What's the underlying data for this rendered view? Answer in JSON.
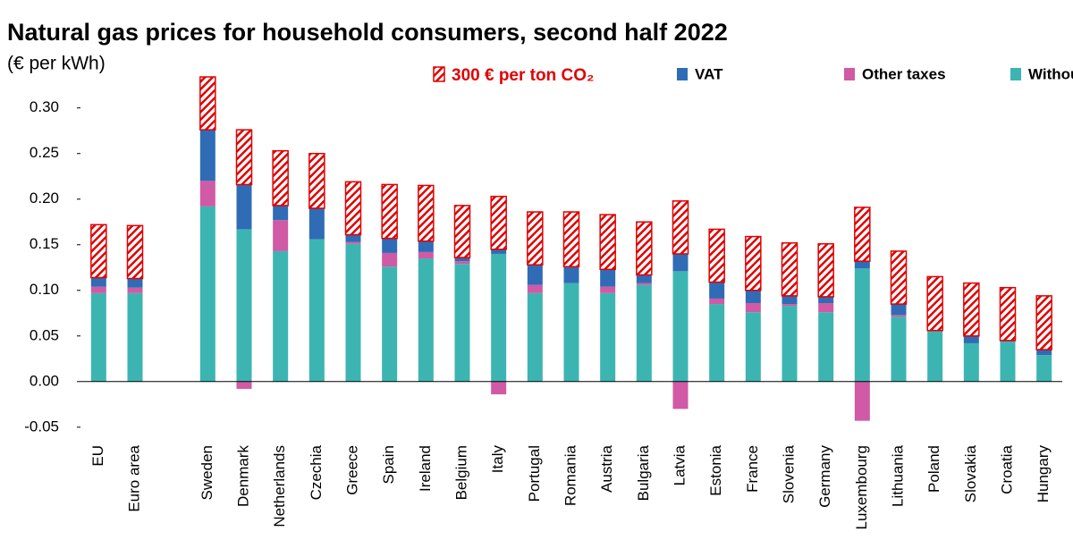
{
  "chart_data": {
    "type": "bar",
    "stacked": true,
    "title": "Natural gas prices for household  consumers, second half 2022",
    "subtitle": "(€ per kWh)",
    "categories": [
      "EU",
      "Euro area",
      null,
      "Sweden",
      "Denmark",
      "Netherlands",
      "Czechia",
      "Greece",
      "Spain",
      "Ireland",
      "Belgium",
      "Italy",
      "Portugal",
      "Romania",
      "Austria",
      "Bulgaria",
      "Latvia",
      "Estonia",
      "France",
      "Slovenia",
      "Germany",
      "Luxembourg",
      "Lithuania",
      "Poland",
      "Slovakia",
      "Croatia",
      "Hungary"
    ],
    "series": [
      {
        "name": "Without taxes",
        "color": "#3cb5b2",
        "values": [
          0.097,
          0.097,
          null,
          0.192,
          0.167,
          0.143,
          0.156,
          0.151,
          0.126,
          0.135,
          0.129,
          0.14,
          0.097,
          0.108,
          0.097,
          0.106,
          0.121,
          0.085,
          0.076,
          0.083,
          0.076,
          0.124,
          0.071,
          0.055,
          0.042,
          0.044,
          0.029
        ]
      },
      {
        "name": "Other taxes",
        "color": "#d05aa6",
        "values": [
          0.007,
          0.006,
          null,
          0.028,
          -0.008,
          0.034,
          0,
          0.002,
          0.015,
          0.007,
          0.003,
          -0.014,
          0.009,
          0,
          0.007,
          0.002,
          -0.03,
          0.006,
          0.01,
          0.002,
          0.01,
          -0.043,
          0.002,
          0,
          0,
          0,
          0
        ]
      },
      {
        "name": "VAT",
        "color": "#2f6cb5",
        "values": [
          0.01,
          0.01,
          null,
          0.056,
          0.049,
          0.016,
          0.034,
          0.008,
          0.016,
          0.012,
          0.004,
          0.005,
          0.022,
          0.018,
          0.019,
          0.009,
          0.019,
          0.018,
          0.014,
          0.009,
          0.007,
          0.008,
          0.012,
          0.001,
          0.008,
          0.001,
          0.006
        ]
      },
      {
        "name": "300 € per ton CO₂",
        "color": "#e00000",
        "pattern": "hatch",
        "values": [
          0.058,
          0.058,
          null,
          0.058,
          0.06,
          0.06,
          0.06,
          0.058,
          0.059,
          0.061,
          0.057,
          0.058,
          0.058,
          0.06,
          0.06,
          0.058,
          0.058,
          0.058,
          0.059,
          0.058,
          0.058,
          0.059,
          0.058,
          0.059,
          0.058,
          0.058,
          0.059
        ]
      }
    ],
    "ylim": [
      -0.06,
      0.335
    ],
    "yticks": [
      {
        "value": -0.05,
        "label": "-0.05"
      },
      {
        "value": 0,
        "label": "0.00"
      },
      {
        "value": 0.05,
        "label": "0.05"
      },
      {
        "value": 0.1,
        "label": "0.10"
      },
      {
        "value": 0.15,
        "label": "0.15"
      },
      {
        "value": 0.2,
        "label": "0.20"
      },
      {
        "value": 0.25,
        "label": "0.25"
      },
      {
        "value": 0.3,
        "label": "0.30"
      }
    ],
    "grid": false
  }
}
